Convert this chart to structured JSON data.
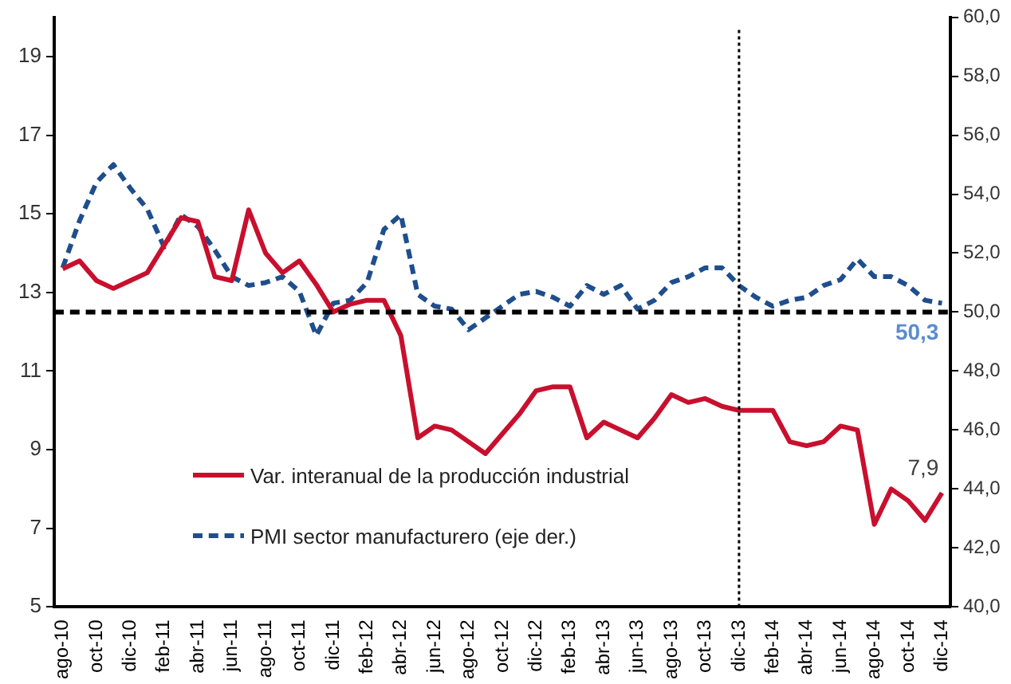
{
  "chart_data": {
    "type": "line",
    "categories": [
      "ago-10",
      null,
      "oct-10",
      null,
      "dic-10",
      null,
      "feb-11",
      null,
      "abr-11",
      null,
      "jun-11",
      null,
      "ago-11",
      null,
      "oct-11",
      null,
      "dic-11",
      null,
      "feb-12",
      null,
      "abr-12",
      null,
      "jun-12",
      null,
      "ago-12",
      null,
      "oct-12",
      null,
      "dic-12",
      null,
      "feb-13",
      null,
      "abr-13",
      null,
      "jun-13",
      null,
      "ago-13",
      null,
      "oct-13",
      null,
      "dic-13",
      null,
      "feb-14",
      null,
      "abr-14",
      null,
      "jun-14",
      null,
      "ago-14",
      null,
      "oct-14",
      null,
      "dic-14"
    ],
    "series": [
      {
        "name": "Var. interanual de la producción industrial",
        "color": "#c8102e",
        "line_style": "solid",
        "values": [
          13.6,
          13.8,
          13.3,
          13.1,
          13.3,
          13.5,
          14.2,
          14.9,
          14.8,
          13.4,
          13.3,
          15.1,
          14.0,
          13.5,
          13.8,
          13.2,
          12.5,
          12.7,
          12.8,
          12.8,
          11.9,
          9.3,
          9.6,
          9.5,
          9.2,
          8.9,
          9.4,
          9.9,
          10.5,
          10.6,
          10.6,
          9.3,
          9.7,
          9.5,
          9.3,
          9.8,
          10.4,
          10.2,
          10.3,
          10.1,
          10.0,
          10.0,
          10.0,
          9.2,
          9.1,
          9.2,
          9.6,
          9.5,
          7.1,
          8.0,
          7.7,
          7.2,
          7.9
        ],
        "value_labels": [
          null,
          null,
          null,
          null,
          null,
          null,
          null,
          null,
          null,
          null,
          null,
          null,
          null,
          null,
          null,
          null,
          null,
          null,
          null,
          null,
          null,
          null,
          null,
          null,
          null,
          null,
          null,
          null,
          null,
          null,
          null,
          null,
          null,
          null,
          null,
          null,
          null,
          null,
          null,
          null,
          null,
          null,
          null,
          null,
          null,
          null,
          null,
          null,
          null,
          null,
          null,
          null,
          "7,9"
        ]
      },
      {
        "name": "PMI sector manufacturero (eje der.)",
        "color": "#1f4e8c",
        "axis": "y2",
        "line_style": "dashed",
        "values": [
          51.5,
          53.1,
          54.4,
          55.0,
          54.2,
          53.5,
          52.2,
          53.3,
          52.9,
          52.1,
          51.2,
          50.9,
          51.0,
          51.2,
          50.7,
          49.2,
          50.3,
          50.4,
          51.0,
          52.8,
          53.3,
          50.6,
          50.2,
          50.1,
          49.4,
          49.8,
          50.2,
          50.6,
          50.7,
          50.5,
          50.2,
          50.9,
          50.6,
          50.9,
          50.1,
          50.4,
          51.0,
          51.2,
          51.5,
          51.5,
          50.9,
          50.5,
          50.2,
          50.4,
          50.5,
          50.9,
          51.1,
          51.8,
          51.2,
          51.2,
          50.9,
          50.4,
          50.3
        ],
        "value_labels": [
          null,
          null,
          null,
          null,
          null,
          null,
          null,
          null,
          null,
          null,
          null,
          null,
          null,
          null,
          null,
          null,
          null,
          null,
          null,
          null,
          null,
          null,
          null,
          null,
          null,
          null,
          null,
          null,
          null,
          null,
          null,
          null,
          null,
          null,
          null,
          null,
          null,
          null,
          null,
          null,
          null,
          null,
          null,
          null,
          null,
          null,
          null,
          null,
          null,
          null,
          null,
          null,
          "50,3"
        ]
      }
    ],
    "ylim": [
      5,
      20
    ],
    "yticks": [
      5,
      7,
      9,
      11,
      13,
      15,
      17,
      19
    ],
    "y2lim": [
      40,
      60
    ],
    "y2ticks": [
      {
        "value": 40,
        "label": "40,0"
      },
      {
        "value": 42,
        "label": "42,0"
      },
      {
        "value": 44,
        "label": "44,0"
      },
      {
        "value": 46,
        "label": "46,0"
      },
      {
        "value": 48,
        "label": "48,0"
      },
      {
        "value": 50,
        "label": "50,0"
      },
      {
        "value": 52,
        "label": "52,0"
      },
      {
        "value": 54,
        "label": "54,0"
      },
      {
        "value": 56,
        "label": "56,0"
      },
      {
        "value": 58,
        "label": "58,0"
      },
      {
        "value": 60,
        "label": "60,0"
      }
    ],
    "ref_lines": [
      {
        "axis": "y2",
        "value": 50,
        "color": "#000000",
        "line_style": "dashed"
      },
      {
        "axis": "x",
        "value": "dic-13",
        "color": "#000000",
        "line_style": "dotted"
      }
    ],
    "grid": false,
    "legend": "bottom left",
    "marker": "none"
  }
}
